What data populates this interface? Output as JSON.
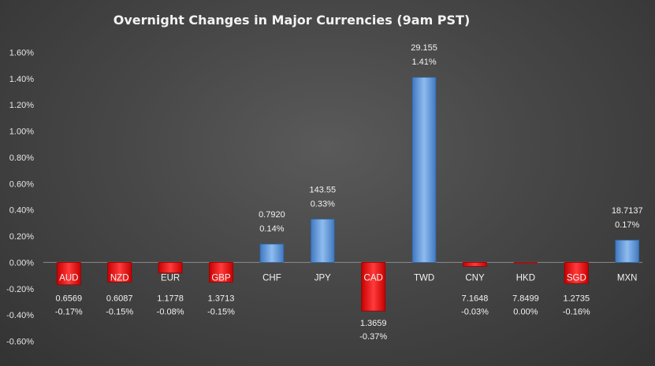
{
  "chart_data": {
    "type": "bar",
    "title": "Overnight Changes in Major Currencies (9am PST)",
    "xlabel": "",
    "ylabel": "",
    "ylim": [
      -0.006,
      0.016
    ],
    "yticks": [
      "-0.60%",
      "-0.40%",
      "-0.20%",
      "0.00%",
      "0.20%",
      "0.40%",
      "0.60%",
      "0.80%",
      "1.00%",
      "1.20%",
      "1.40%",
      "1.60%"
    ],
    "categories": [
      "AUD",
      "NZD",
      "EUR",
      "GBP",
      "CHF",
      "JPY",
      "CAD",
      "TWD",
      "CNY",
      "HKD",
      "SGD",
      "MXN"
    ],
    "values": [
      -0.0017,
      -0.0015,
      -0.0008,
      -0.0015,
      0.0014,
      0.0033,
      -0.0037,
      0.0141,
      -0.0003,
      0.0,
      -0.0016,
      0.0017
    ],
    "rates": [
      "0.6569",
      "0.6087",
      "1.1778",
      "1.3713",
      "0.7920",
      "143.55",
      "1.3659",
      "29.155",
      "7.1648",
      "7.8499",
      "1.2735",
      "18.7137"
    ],
    "pct_labels": [
      "-0.17%",
      "-0.15%",
      "-0.08%",
      "-0.15%",
      "0.14%",
      "0.33%",
      "-0.37%",
      "1.41%",
      "-0.03%",
      "0.00%",
      "-0.16%",
      "0.17%"
    ],
    "grid": false,
    "legend": "none",
    "colors": {
      "positive": "#5b9bd5",
      "negative": "#ff0000",
      "text": "#f2f2f2",
      "category_highlight": "#ff0000"
    }
  }
}
